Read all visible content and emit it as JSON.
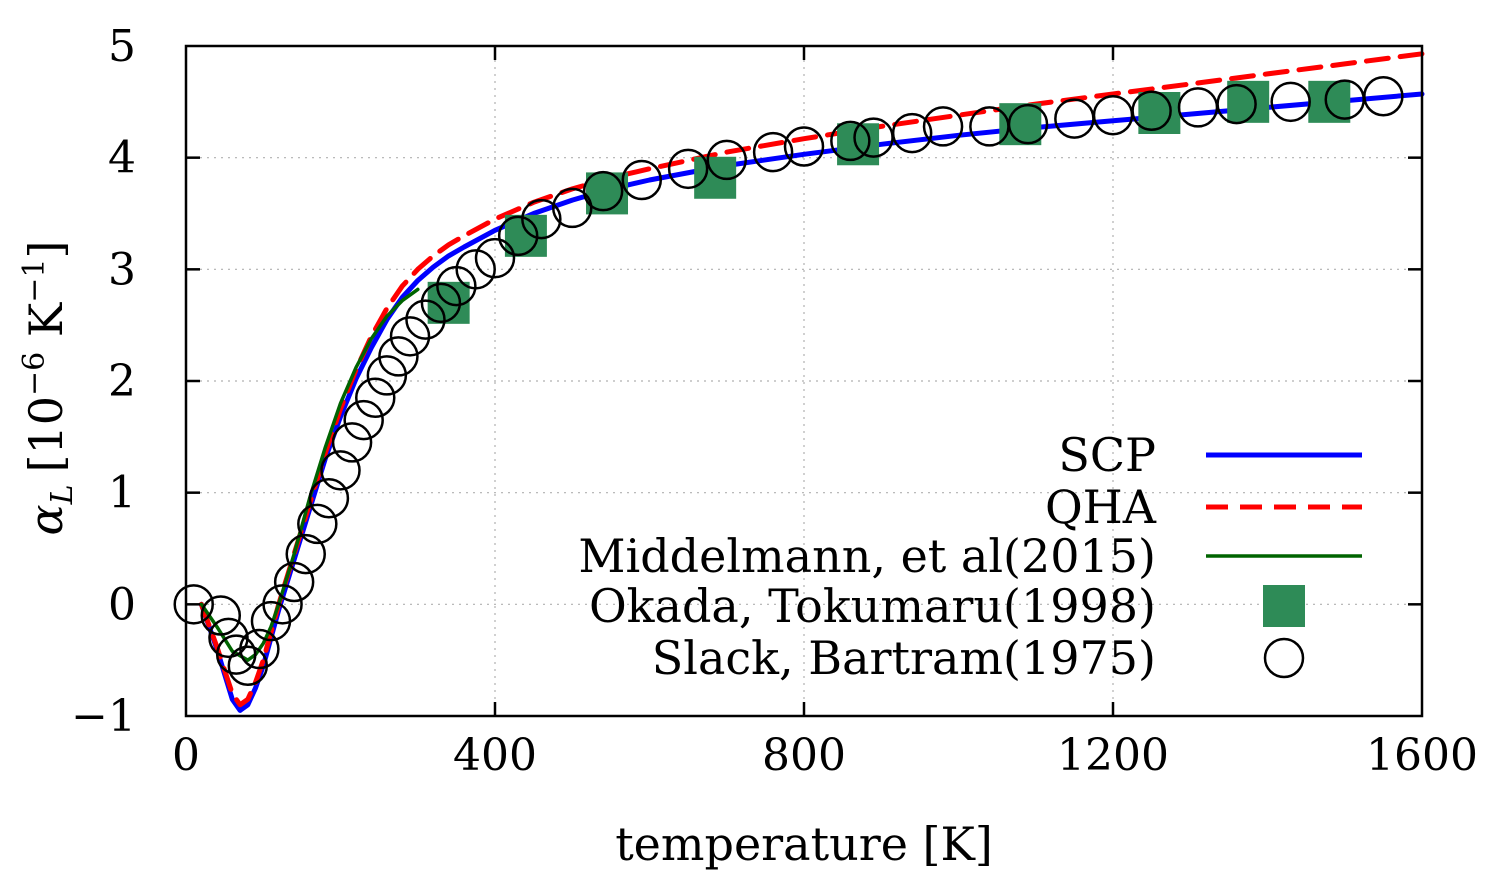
{
  "chart_data": {
    "type": "line",
    "xlabel": "temperature [K]",
    "ylabel": {
      "main": "α",
      "sub": "L",
      "bracket_open": "[10",
      "exp": "−6",
      "unit": " K",
      "unit_exp": "−1",
      "bracket_close": "]"
    },
    "xlim": [
      0,
      1600
    ],
    "ylim": [
      -1,
      5
    ],
    "xticks": [
      0,
      400,
      800,
      1200,
      1600
    ],
    "xtick_labels": [
      "0",
      "400",
      "800",
      "1200",
      "1600"
    ],
    "yticks": [
      -1,
      0,
      1,
      2,
      3,
      4,
      5
    ],
    "ytick_labels": [
      "−1",
      "0",
      "1",
      "2",
      "3",
      "4",
      "5"
    ],
    "grid": true,
    "legend_position": "bottom-right",
    "series": [
      {
        "name": "SCP",
        "style": "line",
        "color": "#0000ff",
        "x": [
          20,
          40,
          60,
          70,
          80,
          90,
          100,
          110,
          120,
          140,
          160,
          180,
          200,
          220,
          240,
          260,
          280,
          300,
          320,
          340,
          360,
          400,
          450,
          500,
          550,
          600,
          700,
          800,
          900,
          1000,
          1100,
          1200,
          1300,
          1400,
          1500,
          1600
        ],
        "y": [
          0.0,
          -0.4,
          -0.85,
          -0.95,
          -0.9,
          -0.75,
          -0.55,
          -0.3,
          -0.05,
          0.4,
          0.85,
          1.3,
          1.68,
          2.02,
          2.3,
          2.55,
          2.75,
          2.9,
          3.02,
          3.12,
          3.2,
          3.35,
          3.5,
          3.62,
          3.72,
          3.8,
          3.93,
          4.03,
          4.12,
          4.2,
          4.27,
          4.33,
          4.39,
          4.45,
          4.51,
          4.57
        ]
      },
      {
        "name": "QHA",
        "style": "dashed",
        "color": "#ff0000",
        "x": [
          20,
          40,
          60,
          70,
          80,
          90,
          100,
          110,
          120,
          140,
          160,
          180,
          200,
          220,
          240,
          260,
          280,
          300,
          320,
          340,
          360,
          400,
          450,
          500,
          550,
          600,
          700,
          800,
          900,
          1000,
          1100,
          1200,
          1300,
          1400,
          1500,
          1600
        ],
        "y": [
          0.0,
          -0.38,
          -0.8,
          -0.9,
          -0.85,
          -0.7,
          -0.5,
          -0.25,
          0.0,
          0.45,
          0.9,
          1.35,
          1.75,
          2.1,
          2.4,
          2.65,
          2.85,
          3.0,
          3.12,
          3.22,
          3.3,
          3.45,
          3.6,
          3.72,
          3.82,
          3.9,
          4.05,
          4.17,
          4.28,
          4.38,
          4.48,
          4.57,
          4.66,
          4.75,
          4.84,
          4.93
        ]
      },
      {
        "name": "Middelmann, et al(2015)",
        "style": "line",
        "color": "#006400",
        "x": [
          20,
          40,
          60,
          80,
          90,
          100,
          110,
          120,
          140,
          160,
          180,
          200,
          220,
          240,
          260,
          280,
          300
        ],
        "y": [
          0.0,
          -0.2,
          -0.42,
          -0.5,
          -0.45,
          -0.35,
          -0.2,
          0.0,
          0.45,
          0.95,
          1.4,
          1.8,
          2.12,
          2.38,
          2.58,
          2.72,
          2.82
        ]
      },
      {
        "name": "Okada, Tokumaru(1998)",
        "style": "square",
        "color": "#2e8b57",
        "x": [
          340,
          440,
          545,
          685,
          870,
          1080,
          1260,
          1375,
          1480
        ],
        "y": [
          2.7,
          3.3,
          3.68,
          3.82,
          4.12,
          4.3,
          4.4,
          4.5,
          4.5
        ]
      },
      {
        "name": "Slack, Bartram(1975)",
        "style": "circle",
        "color": "#000000",
        "x": [
          10,
          45,
          55,
          65,
          80,
          95,
          110,
          125,
          140,
          155,
          170,
          185,
          200,
          215,
          230,
          245,
          260,
          275,
          290,
          310,
          330,
          350,
          375,
          400,
          430,
          460,
          500,
          540,
          590,
          650,
          700,
          760,
          800,
          860,
          890,
          940,
          980,
          1040,
          1090,
          1150,
          1200,
          1250,
          1310,
          1360,
          1430,
          1500,
          1550
        ],
        "y": [
          0.0,
          -0.1,
          -0.3,
          -0.45,
          -0.55,
          -0.4,
          -0.15,
          0.0,
          0.2,
          0.45,
          0.72,
          0.95,
          1.2,
          1.45,
          1.65,
          1.85,
          2.05,
          2.22,
          2.4,
          2.55,
          2.7,
          2.85,
          3.0,
          3.1,
          3.3,
          3.45,
          3.55,
          3.7,
          3.8,
          3.9,
          3.98,
          4.05,
          4.1,
          4.15,
          4.18,
          4.22,
          4.28,
          4.28,
          4.3,
          4.35,
          4.38,
          4.42,
          4.45,
          4.48,
          4.5,
          4.52,
          4.55
        ]
      }
    ]
  }
}
